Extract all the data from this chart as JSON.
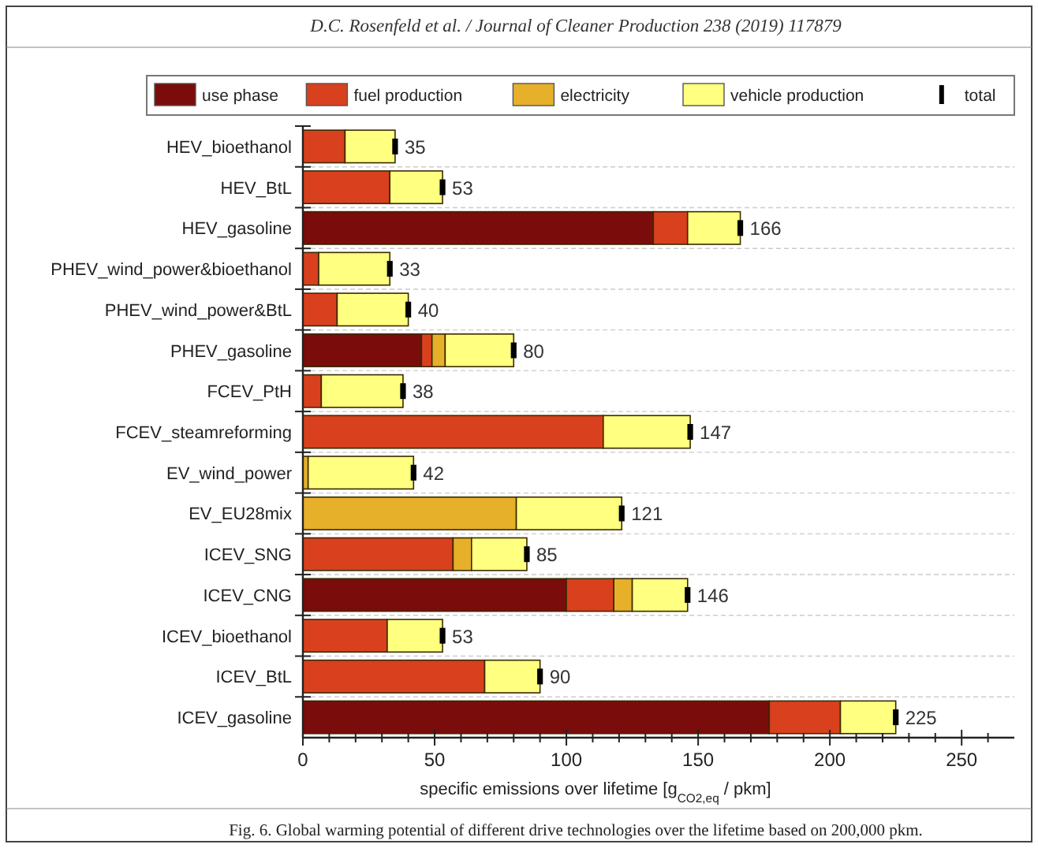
{
  "chart_data": {
    "type": "bar",
    "orientation": "horizontal",
    "stacked": true,
    "annotations": [
      "D.C. Rosenfeld et al. / Journal of Cleaner Production 238 (2019) 117879",
      "Fig. 6. Global warming potential of different drive technologies over the lifetime based on 200,000 pkm."
    ],
    "xlabel": "specific emissions over lifetime [g$_{CO2,eq}$ / pkm]",
    "categories": [
      "HEV_bioethanol",
      "HEV_BtL",
      "HEV_gasoline",
      "PHEV_wind_power&bioethanol",
      "PHEV_wind_power&BtL",
      "PHEV_gasoline",
      "FCEV_PtH",
      "FCEV_steamreforming",
      "EV_wind_power",
      "EV_EU28mix",
      "ICEV_SNG",
      "ICEV_CNG",
      "ICEV_bioethanol",
      "ICEV_BtL",
      "ICEV_gasoline"
    ],
    "series": [
      {
        "name": "use phase",
        "color": "#7a0c0c",
        "values": [
          null,
          null,
          133,
          null,
          null,
          45,
          null,
          null,
          null,
          null,
          null,
          100,
          null,
          null,
          177
        ]
      },
      {
        "name": "fuel production",
        "color": "#d9401e",
        "values": [
          16,
          33,
          13,
          6,
          13,
          4,
          7,
          114,
          null,
          null,
          57,
          18,
          32,
          69,
          27
        ]
      },
      {
        "name": "electricity",
        "color": "#e6b02a",
        "values": [
          null,
          null,
          null,
          null,
          null,
          5,
          null,
          null,
          2,
          81,
          7,
          7,
          null,
          null,
          null
        ]
      },
      {
        "name": "vehicle production",
        "color": "#ffff80",
        "values": [
          19,
          20,
          20,
          27,
          27,
          26,
          31,
          33,
          40,
          40,
          21,
          21,
          21,
          21,
          21
        ]
      },
      {
        "name": "total",
        "type": "scatter",
        "color": "#000000",
        "values": [
          35,
          53,
          166,
          33,
          40,
          80,
          38,
          147,
          42,
          121,
          85,
          146,
          53,
          90,
          225
        ]
      }
    ],
    "totals": [
      "35",
      "53",
      "166",
      "33",
      "40",
      "80",
      "38",
      "147",
      "42",
      "121",
      "85",
      "146",
      "53",
      "90",
      "225"
    ],
    "xlim": [
      0,
      270
    ],
    "xticks": [
      0,
      {
        "value": 10,
        "label": null
      },
      {
        "value": 20,
        "label": null
      },
      {
        "value": 30,
        "label": null
      },
      {
        "value": 40,
        "label": null
      },
      50,
      {
        "value": 60,
        "label": null
      },
      {
        "value": 70,
        "label": null
      },
      {
        "value": 80,
        "label": null
      },
      {
        "value": 90,
        "label": null
      },
      100,
      {
        "value": 110,
        "label": null
      },
      {
        "value": 120,
        "label": null
      },
      {
        "value": 130,
        "label": null
      },
      {
        "value": 140,
        "label": null
      },
      150,
      {
        "value": 160,
        "label": null
      },
      {
        "value": 170,
        "label": null
      },
      {
        "value": 180,
        "label": null
      },
      {
        "value": 190,
        "label": null
      },
      200,
      {
        "value": 210,
        "label": null
      },
      {
        "value": 220,
        "label": null
      },
      {
        "value": 230,
        "label": null
      },
      {
        "value": 240,
        "label": null
      },
      250,
      {
        "value": 260,
        "label": null
      }
    ],
    "grid": "y",
    "legend": "top"
  }
}
